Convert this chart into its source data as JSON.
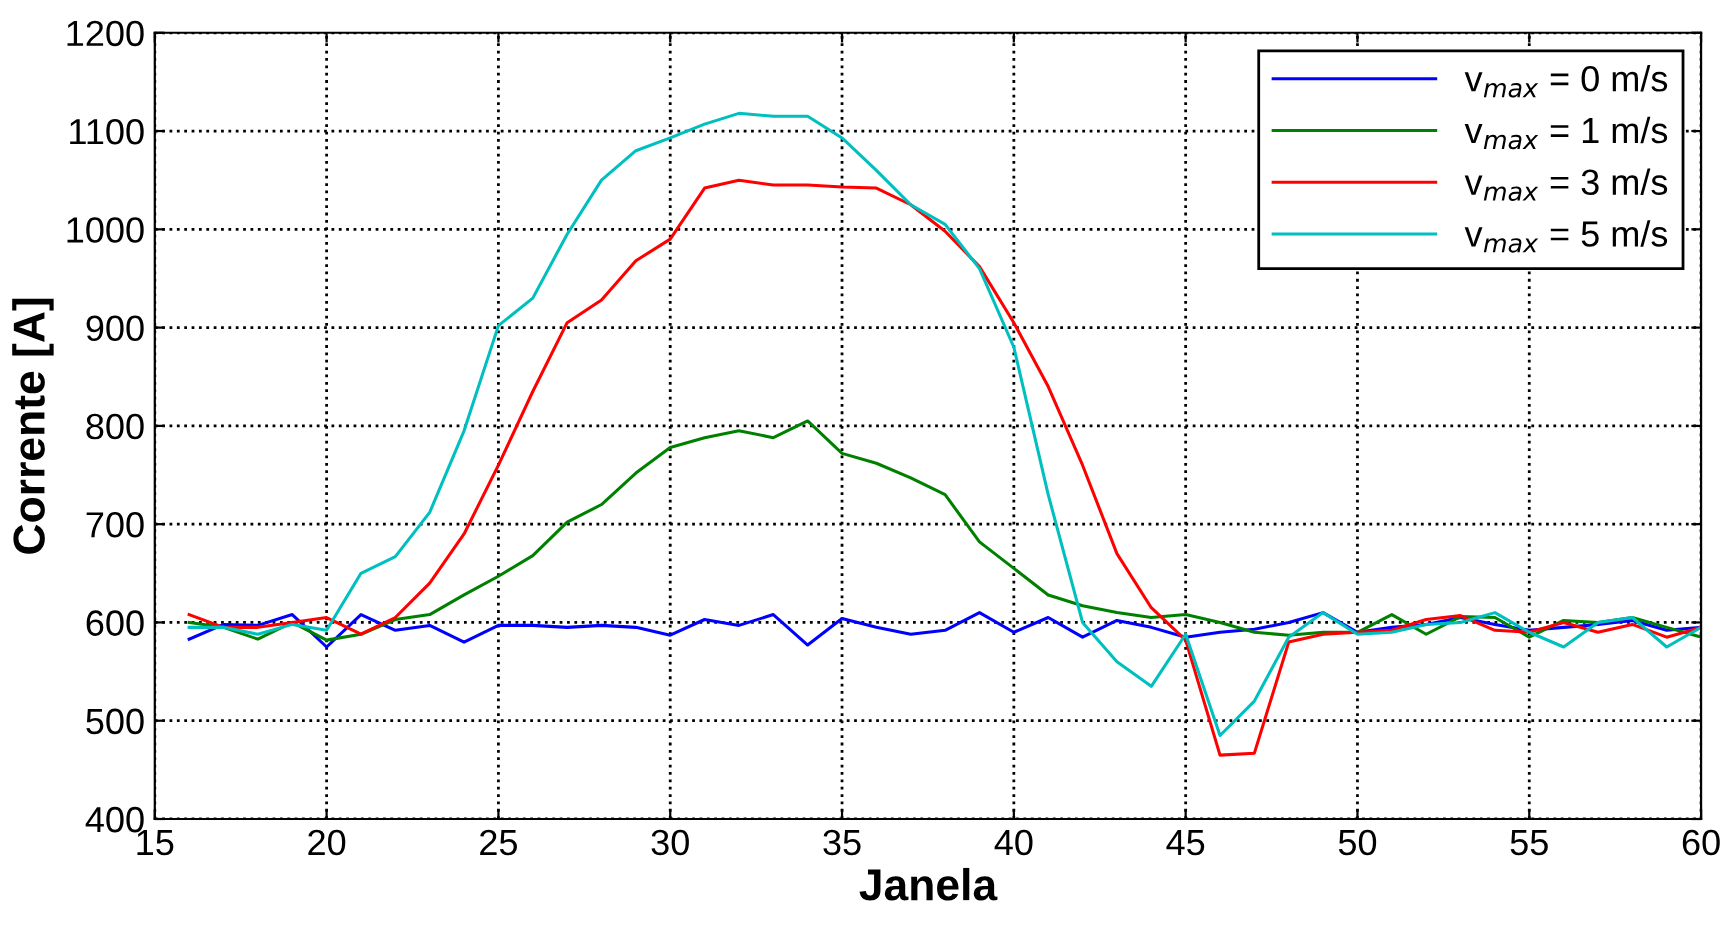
{
  "chart_data": {
    "type": "line",
    "xlabel": "Janela",
    "ylabel": "Corrente [A]",
    "x": [
      16,
      17,
      18,
      19,
      20,
      21,
      22,
      23,
      24,
      25,
      26,
      27,
      28,
      29,
      30,
      31,
      32,
      33,
      34,
      35,
      36,
      37,
      38,
      39,
      40,
      41,
      42,
      43,
      44,
      45,
      46,
      47,
      48,
      49,
      50,
      51,
      52,
      53,
      54,
      55,
      56,
      57,
      58,
      59,
      60
    ],
    "series": [
      {
        "name": "v$_{max}$ = 0 m/s",
        "color": "#0000ff",
        "values": [
          583,
          598,
          597,
          608,
          575,
          608,
          592,
          597,
          580,
          597,
          597,
          595,
          597,
          595,
          587,
          603,
          597,
          608,
          577,
          604,
          595,
          588,
          592,
          610,
          590,
          605,
          585,
          602,
          595,
          585,
          590,
          593,
          600,
          610,
          590,
          595,
          598,
          605,
          598,
          592,
          595,
          598,
          602,
          592,
          595
        ]
      },
      {
        "name": "v$_{max}$ = 1 m/s",
        "color": "#008000",
        "values": [
          600,
          595,
          583,
          600,
          582,
          588,
          603,
          608,
          628,
          647,
          668,
          702,
          720,
          752,
          778,
          788,
          795,
          788,
          805,
          772,
          762,
          747,
          730,
          682,
          655,
          628,
          617,
          610,
          605,
          608,
          600,
          590,
          587,
          590,
          590,
          608,
          588,
          606,
          605,
          585,
          602,
          600,
          605,
          595,
          585
        ]
      },
      {
        "name": "v$_{max}$ = 3 m/s",
        "color": "#ff0000",
        "values": [
          608,
          595,
          595,
          600,
          605,
          588,
          605,
          640,
          690,
          760,
          835,
          905,
          928,
          968,
          990,
          1042,
          1050,
          1045,
          1045,
          1043,
          1042,
          1025,
          998,
          962,
          905,
          840,
          760,
          670,
          615,
          582,
          465,
          467,
          580,
          588,
          590,
          592,
          603,
          607,
          592,
          590,
          600,
          590,
          598,
          585,
          595
        ]
      },
      {
        "name": "v$_{max}$ = 5 m/s",
        "color": "#00bfbf",
        "values": [
          595,
          595,
          588,
          598,
          592,
          650,
          667,
          712,
          795,
          902,
          930,
          995,
          1050,
          1080,
          1093,
          1107,
          1118,
          1115,
          1115,
          1093,
          1060,
          1025,
          1005,
          960,
          880,
          730,
          600,
          560,
          535,
          588,
          485,
          520,
          585,
          610,
          588,
          590,
          598,
          600,
          610,
          590,
          575,
          600,
          605,
          575,
          595
        ]
      }
    ],
    "xlim": [
      15,
      60
    ],
    "xticks": [
      15,
      20,
      25,
      30,
      35,
      40,
      45,
      50,
      55,
      60
    ],
    "ylim": [
      400,
      1200
    ],
    "yticks": [
      400,
      500,
      600,
      700,
      800,
      900,
      1000,
      1100,
      1200
    ],
    "grid": true,
    "legend": "top right",
    "line_style": "solid"
  }
}
